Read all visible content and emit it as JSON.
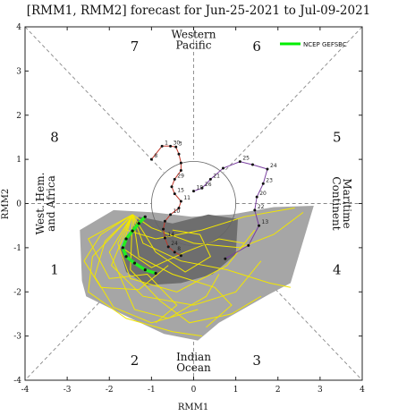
{
  "chart_data": {
    "type": "line",
    "title": "[RMM1, RMM2] forecast for Jun-25-2021 to Jul-09-2021",
    "xlabel": "RMM1",
    "ylabel": "RMM2",
    "xlim": [
      -4,
      4
    ],
    "ylim": [
      -4,
      4
    ],
    "xticks": [
      "-4",
      "-3",
      "-2",
      "-1",
      "0",
      "1",
      "2",
      "3",
      "4"
    ],
    "yticks": [
      "-4",
      "-3",
      "-2",
      "-1",
      "0",
      "1",
      "2",
      "3",
      "4"
    ],
    "phases": [
      {
        "label": "1",
        "x": -3.3,
        "y": -1.5
      },
      {
        "label": "2",
        "x": -1.4,
        "y": -3.55
      },
      {
        "label": "3",
        "x": 1.5,
        "y": -3.55
      },
      {
        "label": "4",
        "x": 3.4,
        "y": -1.5
      },
      {
        "label": "5",
        "x": 3.4,
        "y": 1.5
      },
      {
        "label": "6",
        "x": 1.5,
        "y": 3.55
      },
      {
        "label": "7",
        "x": -1.4,
        "y": 3.55
      },
      {
        "label": "8",
        "x": -3.3,
        "y": 1.5
      }
    ],
    "regions": {
      "western_pacific": [
        "Western",
        "Pacific"
      ],
      "indian_ocean": [
        "Indian",
        "Ocean"
      ],
      "west_hem": [
        "West. Hem.",
        "and Africa"
      ],
      "maritime": [
        "Maritime",
        "Continent"
      ]
    },
    "legend": {
      "label": "NCEP GEFSBC",
      "position": "top-right",
      "color": "#00ee00"
    },
    "colors": {
      "spread_outer": "#a6a6a6",
      "spread_inner": "#6e6e6e",
      "ensemble": "#f2e600",
      "ncep": "#22ee22",
      "observed": "#7a3fa0",
      "observed_early": "#c0392b"
    },
    "observed": {
      "points": [
        [
          -1.0,
          1.0
        ],
        [
          -0.75,
          1.3
        ],
        [
          -0.55,
          1.3
        ],
        [
          -0.42,
          1.28
        ],
        [
          -0.35,
          1.12
        ],
        [
          -0.3,
          0.92
        ],
        [
          -0.3,
          0.75
        ],
        [
          -0.45,
          0.55
        ],
        [
          -0.52,
          0.38
        ],
        [
          -0.45,
          0.22
        ],
        [
          -0.3,
          0.05
        ],
        [
          -0.35,
          -0.1
        ],
        [
          -0.55,
          -0.25
        ],
        [
          -0.68,
          -0.4
        ],
        [
          -0.72,
          -0.58
        ],
        [
          -0.68,
          -0.78
        ],
        [
          -0.6,
          -0.98
        ],
        [
          -0.45,
          -1.1
        ],
        [
          -0.3,
          -1.18
        ],
        [
          0.0,
          0.28
        ],
        [
          0.2,
          0.35
        ],
        [
          0.4,
          0.55
        ],
        [
          0.7,
          0.8
        ],
        [
          1.1,
          0.95
        ],
        [
          1.4,
          0.88
        ],
        [
          1.75,
          0.78
        ],
        [
          1.65,
          0.45
        ],
        [
          1.5,
          0.15
        ],
        [
          1.45,
          -0.15
        ],
        [
          1.55,
          -0.5
        ],
        [
          1.3,
          -0.95
        ],
        [
          0.75,
          -1.25
        ]
      ],
      "labels": [
        {
          "t": "1",
          "i": 1
        },
        {
          "t": "3",
          "i": 3
        },
        {
          "t": "8",
          "i": 0
        },
        {
          "t": "10",
          "i": 12
        },
        {
          "t": "11",
          "i": 10
        },
        {
          "t": "14",
          "i": 15
        },
        {
          "t": "15",
          "i": 9
        },
        {
          "t": "19",
          "i": 19
        },
        {
          "t": "21",
          "i": 21
        },
        {
          "t": "22",
          "i": 28
        },
        {
          "t": "23",
          "i": 26
        },
        {
          "t": "24",
          "i": 25
        },
        {
          "t": "25",
          "i": 23
        },
        {
          "t": "26",
          "i": 20
        },
        {
          "t": "29",
          "i": 7
        },
        {
          "t": "30",
          "i": 2
        },
        {
          "t": "13",
          "i": 29
        },
        {
          "t": "20",
          "i": 27
        },
        {
          "t": "24",
          "i": 16
        },
        {
          "t": "8",
          "i": 17
        }
      ]
    },
    "ncep_gefsbc": [
      [
        -1.15,
        -0.3
      ],
      [
        -1.3,
        -0.45
      ],
      [
        -1.45,
        -0.62
      ],
      [
        -1.6,
        -0.8
      ],
      [
        -1.68,
        -1.0
      ],
      [
        -1.6,
        -1.2
      ],
      [
        -1.4,
        -1.35
      ],
      [
        -1.15,
        -1.5
      ],
      [
        -0.9,
        -1.58
      ]
    ],
    "spread_outer": [
      [
        -2.7,
        -0.6
      ],
      [
        -2.65,
        -1.75
      ],
      [
        -2.55,
        -2.1
      ],
      [
        -1.6,
        -2.55
      ],
      [
        -0.7,
        -2.95
      ],
      [
        0.1,
        -3.1
      ],
      [
        0.6,
        -2.7
      ],
      [
        1.8,
        -2.05
      ],
      [
        2.3,
        -1.8
      ],
      [
        2.85,
        -0.05
      ],
      [
        1.9,
        -0.08
      ],
      [
        0.9,
        -0.25
      ],
      [
        -0.05,
        -0.3
      ],
      [
        -0.95,
        -0.2
      ],
      [
        -1.9,
        -0.15
      ]
    ],
    "spread_inner": [
      [
        -1.75,
        -1.05
      ],
      [
        -1.3,
        -0.3
      ],
      [
        -0.5,
        -0.45
      ],
      [
        0.35,
        -0.25
      ],
      [
        1.05,
        -0.35
      ],
      [
        1.0,
        -1.15
      ],
      [
        0.45,
        -1.6
      ],
      [
        -0.3,
        -1.8
      ],
      [
        -1.1,
        -1.85
      ],
      [
        -1.6,
        -1.55
      ]
    ],
    "ensemble_members": [
      [
        [
          -1.45,
          -0.25
        ],
        [
          -2.1,
          -0.85
        ],
        [
          -2.35,
          -1.65
        ],
        [
          -1.9,
          -2.35
        ],
        [
          -1.0,
          -2.7
        ],
        [
          0.1,
          -2.4
        ]
      ],
      [
        [
          -1.45,
          -0.25
        ],
        [
          -1.8,
          -0.9
        ],
        [
          -1.5,
          -1.7
        ],
        [
          -0.4,
          -2.0
        ],
        [
          0.8,
          -1.4
        ],
        [
          1.45,
          -0.6
        ]
      ],
      [
        [
          -1.45,
          -0.25
        ],
        [
          -1.2,
          -0.9
        ],
        [
          -0.3,
          -1.3
        ],
        [
          0.8,
          -1.5
        ],
        [
          1.8,
          -1.8
        ],
        [
          2.3,
          -1.9
        ]
      ],
      [
        [
          -1.45,
          -0.25
        ],
        [
          -2.4,
          -1.2
        ],
        [
          -2.5,
          -2.0
        ],
        [
          -1.6,
          -2.6
        ],
        [
          -0.5,
          -2.9
        ],
        [
          0.2,
          -3.0
        ]
      ],
      [
        [
          -1.45,
          -0.25
        ],
        [
          -1.6,
          -0.6
        ],
        [
          -0.9,
          -0.8
        ],
        [
          0.2,
          -0.6
        ],
        [
          1.2,
          -0.3
        ],
        [
          2.4,
          -0.1
        ]
      ],
      [
        [
          -1.45,
          -0.25
        ],
        [
          -1.95,
          -1.4
        ],
        [
          -1.2,
          -2.1
        ],
        [
          0.0,
          -2.3
        ],
        [
          1.0,
          -2.0
        ],
        [
          1.6,
          -1.3
        ]
      ],
      [
        [
          -1.45,
          -0.25
        ],
        [
          -1.3,
          -1.2
        ],
        [
          -0.5,
          -1.6
        ],
        [
          0.5,
          -1.9
        ],
        [
          0.9,
          -2.3
        ],
        [
          0.3,
          -2.8
        ]
      ],
      [
        [
          -1.45,
          -0.25
        ],
        [
          -2.2,
          -0.7
        ],
        [
          -2.6,
          -1.3
        ],
        [
          -2.2,
          -1.9
        ],
        [
          -1.3,
          -1.95
        ],
        [
          -0.6,
          -1.4
        ]
      ],
      [
        [
          -1.45,
          -0.25
        ],
        [
          -1.0,
          -0.55
        ],
        [
          0.0,
          -0.9
        ],
        [
          1.1,
          -1.0
        ],
        [
          1.9,
          -0.7
        ],
        [
          2.6,
          -0.2
        ]
      ],
      [
        [
          -1.45,
          -0.25
        ],
        [
          -1.7,
          -1.0
        ],
        [
          -1.0,
          -1.45
        ],
        [
          -0.2,
          -1.1
        ],
        [
          0.6,
          -0.8
        ],
        [
          1.2,
          -0.9
        ]
      ],
      [
        [
          -1.45,
          -0.25
        ],
        [
          -2.0,
          -1.1
        ],
        [
          -1.4,
          -2.4
        ],
        [
          -0.6,
          -2.6
        ],
        [
          0.3,
          -2.1
        ],
        [
          0.6,
          -1.6
        ]
      ],
      [
        [
          -1.45,
          -0.25
        ],
        [
          -1.5,
          -1.5
        ],
        [
          -0.8,
          -2.2
        ],
        [
          -0.1,
          -2.7
        ],
        [
          0.9,
          -2.5
        ],
        [
          1.6,
          -2.1
        ]
      ],
      [
        [
          -1.45,
          -0.25
        ],
        [
          -2.5,
          -0.8
        ],
        [
          -2.0,
          -1.7
        ],
        [
          -1.1,
          -1.6
        ],
        [
          -0.4,
          -2.3
        ],
        [
          -0.9,
          -2.7
        ]
      ],
      [
        [
          -1.45,
          -0.25
        ],
        [
          -0.9,
          -1.1
        ],
        [
          -0.2,
          -1.55
        ],
        [
          0.4,
          -1.2
        ],
        [
          0.15,
          -0.7
        ],
        [
          -0.5,
          -0.6
        ]
      ]
    ]
  }
}
